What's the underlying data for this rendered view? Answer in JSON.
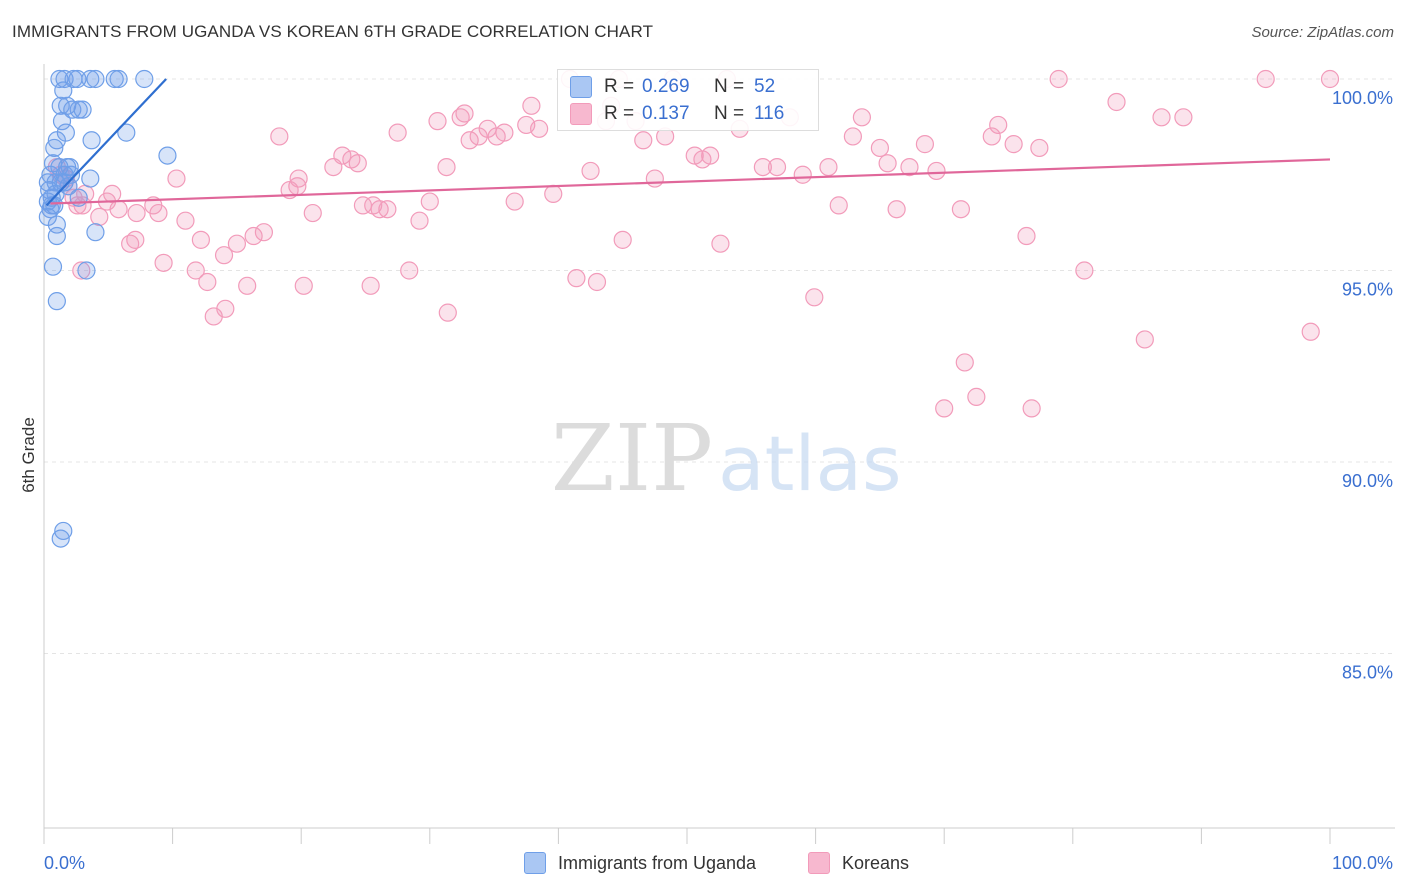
{
  "title": "IMMIGRANTS FROM UGANDA VS KOREAN 6TH GRADE CORRELATION CHART",
  "source": "Source: ZipAtlas.com",
  "watermark": {
    "zip": "ZIP",
    "atlas": "atlas"
  },
  "legend_top": [
    {
      "series": "Immigrants from Uganda",
      "r_label": "R =",
      "r_value": "0.269",
      "n_label": "N =",
      "n_value": "52"
    },
    {
      "series": "Koreans",
      "r_label": "R =",
      "r_value": "0.137",
      "n_label": "N =",
      "n_value": "116"
    }
  ],
  "chart_data": {
    "type": "scatter",
    "title": "IMMIGRANTS FROM UGANDA VS KOREAN 6TH GRADE CORRELATION CHART",
    "xlabel": "",
    "ylabel": "6th Grade",
    "xlim": [
      0,
      100
    ],
    "ylim": [
      80.4,
      100.4
    ],
    "x_tick_labels": [
      "0.0%",
      "100.0%"
    ],
    "y_ticks": [
      {
        "value": 100,
        "label": "100.0%"
      },
      {
        "value": 95,
        "label": "95.0%"
      },
      {
        "value": 90,
        "label": "90.0%"
      },
      {
        "value": 85,
        "label": "85.0%"
      }
    ],
    "grid": true,
    "colors": {
      "uganda": "#6f9fe8",
      "uganda_line": "#2f6fd0",
      "koreans": "#f29bba",
      "koreans_line": "#e0679a",
      "tick_label": "#3a6fd0"
    },
    "series": [
      {
        "name": "Immigrants from Uganda",
        "trend": {
          "x": [
            0.2,
            9.5
          ],
          "y": [
            96.7,
            100.0
          ]
        },
        "points": [
          [
            1.2,
            100
          ],
          [
            1.6,
            100
          ],
          [
            2.3,
            100
          ],
          [
            2.6,
            100
          ],
          [
            3.6,
            100
          ],
          [
            4.0,
            100
          ],
          [
            5.5,
            100
          ],
          [
            5.8,
            100
          ],
          [
            7.8,
            100
          ],
          [
            1.5,
            99.7
          ],
          [
            1.3,
            99.3
          ],
          [
            1.8,
            99.3
          ],
          [
            2.2,
            99.2
          ],
          [
            2.7,
            99.2
          ],
          [
            3.0,
            99.2
          ],
          [
            1.4,
            98.9
          ],
          [
            1.7,
            98.6
          ],
          [
            1.0,
            98.4
          ],
          [
            3.7,
            98.4
          ],
          [
            6.4,
            98.6
          ],
          [
            0.8,
            98.2
          ],
          [
            9.6,
            98.0
          ],
          [
            0.7,
            97.8
          ],
          [
            1.2,
            97.7
          ],
          [
            1.8,
            97.7
          ],
          [
            2.0,
            97.7
          ],
          [
            0.5,
            97.5
          ],
          [
            1.6,
            97.5
          ],
          [
            2.1,
            97.5
          ],
          [
            0.3,
            97.3
          ],
          [
            0.9,
            97.3
          ],
          [
            1.3,
            97.3
          ],
          [
            1.6,
            97.3
          ],
          [
            3.6,
            97.4
          ],
          [
            0.4,
            97.1
          ],
          [
            0.6,
            96.9
          ],
          [
            2.7,
            96.9
          ],
          [
            0.3,
            96.8
          ],
          [
            0.6,
            96.7
          ],
          [
            0.8,
            96.7
          ],
          [
            0.5,
            96.6
          ],
          [
            0.3,
            96.4
          ],
          [
            1.0,
            96.2
          ],
          [
            4.0,
            96.0
          ],
          [
            1.0,
            95.9
          ],
          [
            0.7,
            95.1
          ],
          [
            3.3,
            95.0
          ],
          [
            1.0,
            94.2
          ],
          [
            1.5,
            88.2
          ],
          [
            1.3,
            88.0
          ],
          [
            0.9,
            97.0
          ],
          [
            1.9,
            97.2
          ]
        ]
      },
      {
        "name": "Koreans",
        "trend": {
          "x": [
            0.5,
            100
          ],
          "y": [
            96.75,
            97.9
          ]
        },
        "points": [
          [
            1.0,
            97.7
          ],
          [
            1.3,
            97.5
          ],
          [
            1.7,
            97.4
          ],
          [
            1.9,
            97.2
          ],
          [
            2.3,
            96.9
          ],
          [
            2.6,
            96.7
          ],
          [
            3.2,
            97.0
          ],
          [
            3.0,
            96.7
          ],
          [
            4.3,
            96.4
          ],
          [
            4.9,
            96.8
          ],
          [
            5.8,
            96.6
          ],
          [
            7.2,
            96.5
          ],
          [
            8.5,
            96.7
          ],
          [
            8.9,
            96.5
          ],
          [
            10.3,
            97.4
          ],
          [
            11.0,
            96.3
          ],
          [
            12.2,
            95.8
          ],
          [
            14.0,
            95.4
          ],
          [
            13.2,
            93.8
          ],
          [
            14.1,
            94.0
          ],
          [
            15.0,
            95.7
          ],
          [
            16.3,
            95.9
          ],
          [
            15.8,
            94.6
          ],
          [
            18.3,
            98.5
          ],
          [
            17.1,
            96.0
          ],
          [
            19.1,
            97.1
          ],
          [
            19.7,
            97.2
          ],
          [
            19.8,
            97.4
          ],
          [
            20.9,
            96.5
          ],
          [
            22.5,
            97.7
          ],
          [
            23.2,
            98.0
          ],
          [
            23.9,
            97.9
          ],
          [
            24.4,
            97.8
          ],
          [
            24.8,
            96.7
          ],
          [
            25.6,
            96.7
          ],
          [
            26.1,
            96.6
          ],
          [
            26.7,
            96.6
          ],
          [
            27.5,
            98.6
          ],
          [
            29.2,
            96.3
          ],
          [
            30.0,
            96.8
          ],
          [
            30.6,
            98.9
          ],
          [
            31.3,
            97.7
          ],
          [
            32.7,
            99.1
          ],
          [
            33.1,
            98.4
          ],
          [
            33.8,
            98.5
          ],
          [
            34.5,
            98.7
          ],
          [
            35.2,
            98.5
          ],
          [
            35.8,
            98.6
          ],
          [
            36.6,
            96.8
          ],
          [
            37.5,
            98.8
          ],
          [
            37.9,
            99.3
          ],
          [
            38.5,
            98.7
          ],
          [
            39.6,
            97.0
          ],
          [
            40.9,
            100
          ],
          [
            41.4,
            94.8
          ],
          [
            42.5,
            97.6
          ],
          [
            43.0,
            94.7
          ],
          [
            43.7,
            98.9
          ],
          [
            44.1,
            99.3
          ],
          [
            44.7,
            100
          ],
          [
            45.0,
            95.8
          ],
          [
            46.0,
            98.9
          ],
          [
            46.6,
            98.4
          ],
          [
            47.5,
            97.4
          ],
          [
            48.3,
            98.5
          ],
          [
            48.9,
            100
          ],
          [
            50.6,
            98.0
          ],
          [
            51.2,
            97.9
          ],
          [
            51.8,
            98.0
          ],
          [
            52.6,
            95.7
          ],
          [
            53.1,
            100
          ],
          [
            54.1,
            98.7
          ],
          [
            55.9,
            97.7
          ],
          [
            57.0,
            97.7
          ],
          [
            58.0,
            99.0
          ],
          [
            59.0,
            97.5
          ],
          [
            59.9,
            94.3
          ],
          [
            61.0,
            97.7
          ],
          [
            61.8,
            96.7
          ],
          [
            62.9,
            98.5
          ],
          [
            63.6,
            99.0
          ],
          [
            65.0,
            98.2
          ],
          [
            65.6,
            97.8
          ],
          [
            66.3,
            96.6
          ],
          [
            67.3,
            97.7
          ],
          [
            68.5,
            98.3
          ],
          [
            69.4,
            97.6
          ],
          [
            70.0,
            91.4
          ],
          [
            71.3,
            96.6
          ],
          [
            71.6,
            92.6
          ],
          [
            72.5,
            91.7
          ],
          [
            73.7,
            98.5
          ],
          [
            74.2,
            98.8
          ],
          [
            75.4,
            98.3
          ],
          [
            76.4,
            95.9
          ],
          [
            76.8,
            91.4
          ],
          [
            77.4,
            98.2
          ],
          [
            78.9,
            100
          ],
          [
            80.9,
            95.0
          ],
          [
            83.4,
            99.4
          ],
          [
            85.6,
            93.2
          ],
          [
            86.9,
            99.0
          ],
          [
            88.6,
            99.0
          ],
          [
            95.0,
            100
          ],
          [
            100.0,
            100
          ],
          [
            98.5,
            93.4
          ],
          [
            5.3,
            97.0
          ],
          [
            6.7,
            95.7
          ],
          [
            7.1,
            95.8
          ],
          [
            9.3,
            95.2
          ],
          [
            11.8,
            95.0
          ],
          [
            12.7,
            94.7
          ],
          [
            20.2,
            94.6
          ],
          [
            25.4,
            94.6
          ],
          [
            28.4,
            95.0
          ],
          [
            31.4,
            93.9
          ],
          [
            32.4,
            99.0
          ],
          [
            2.9,
            95.0
          ]
        ]
      }
    ]
  },
  "bottom_legend": [
    {
      "label": "Immigrants from Uganda"
    },
    {
      "label": "Koreans"
    }
  ]
}
